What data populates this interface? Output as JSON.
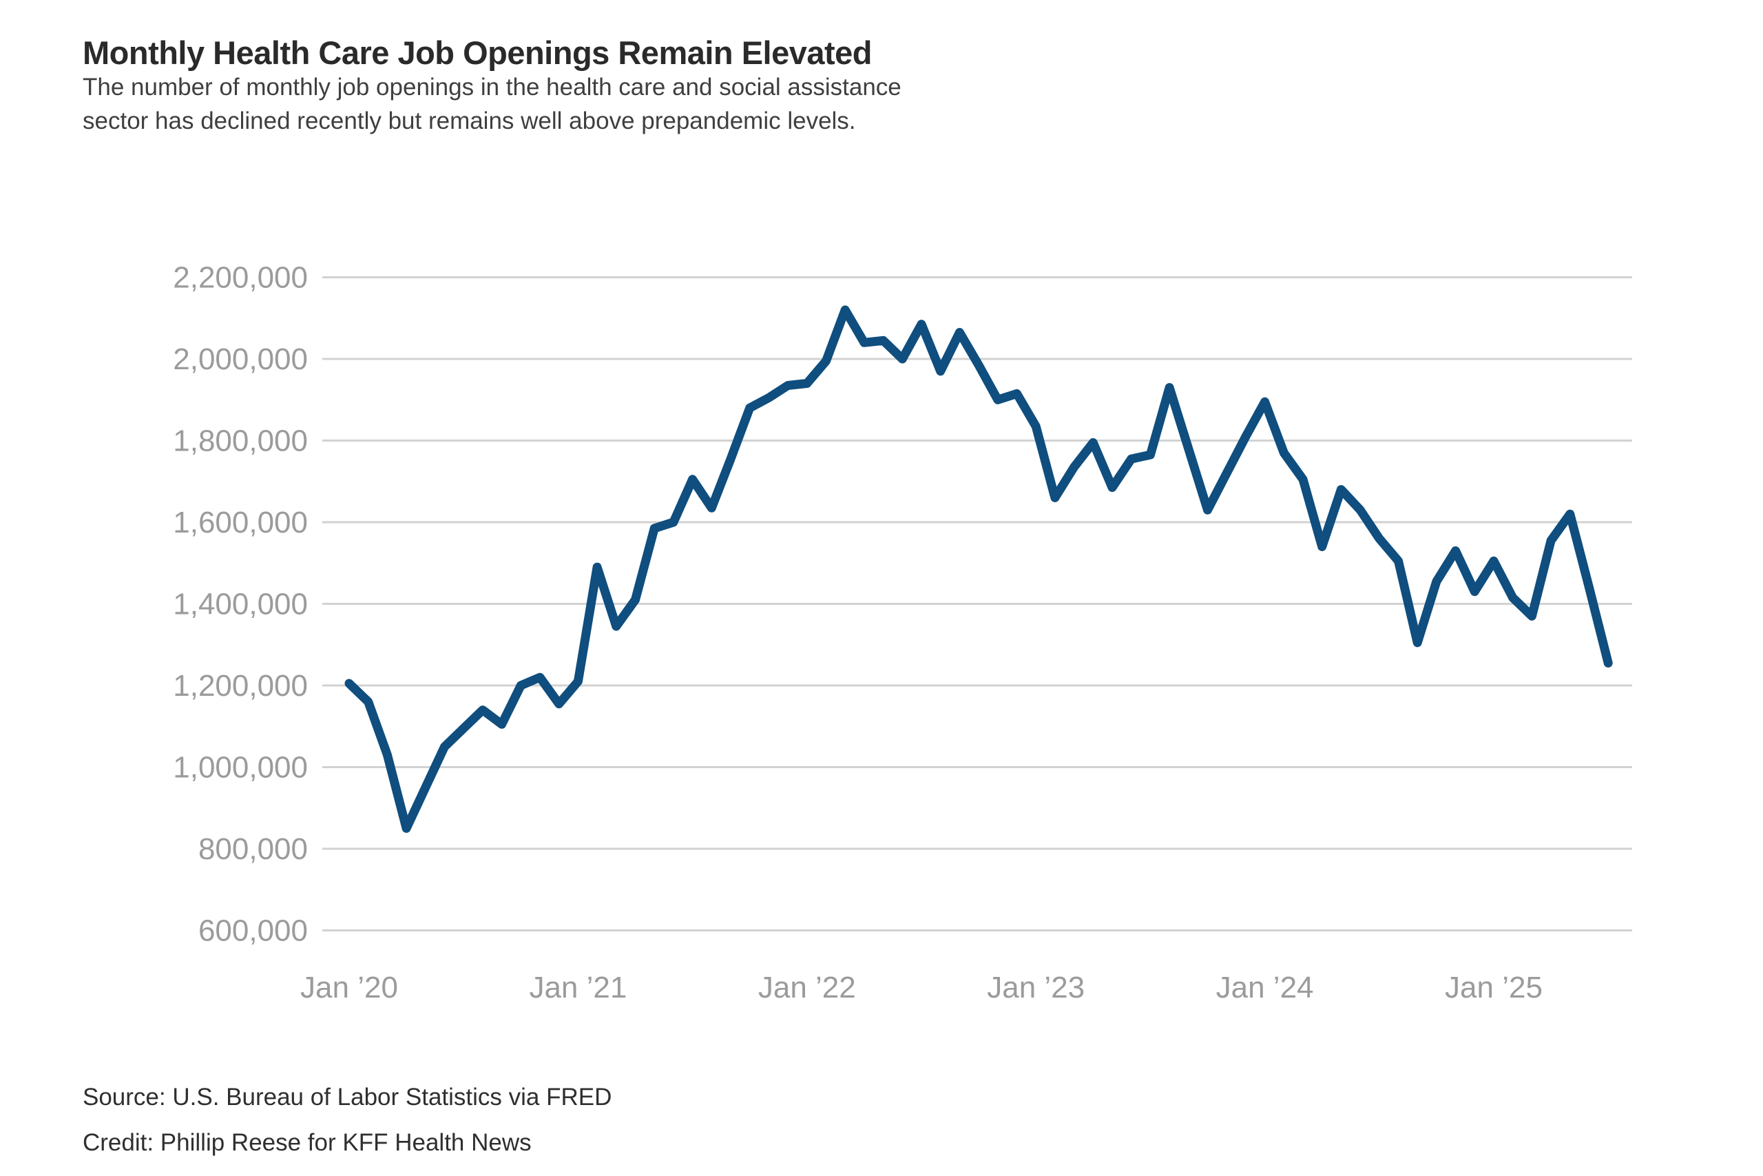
{
  "header": {
    "title": "Monthly Health Care Job Openings Remain Elevated",
    "subtitle_lines": [
      "The number of monthly job openings in the health care and social assistance",
      "sector has declined recently but remains well above prepandemic levels."
    ]
  },
  "footer": {
    "source": "Source: U.S. Bureau of Labor Statistics via FRED",
    "credit": "Credit: Phillip Reese for KFF Health News"
  },
  "colors": {
    "line": "#0F4E7E",
    "gridline": "#d2d2d2",
    "tick_text": "#9b9b9b",
    "background": "#ffffff"
  },
  "chart_data": {
    "type": "line",
    "title": "Monthly Health Care Job Openings Remain Elevated",
    "xlabel": "",
    "ylabel": "",
    "grid": true,
    "legend": false,
    "ylim": [
      600000,
      2200000
    ],
    "y_ticks": [
      {
        "value": 2200000,
        "label": "2,200,000"
      },
      {
        "value": 2000000,
        "label": "2,000,000"
      },
      {
        "value": 1800000,
        "label": "1,800,000"
      },
      {
        "value": 1600000,
        "label": "1,600,000"
      },
      {
        "value": 1400000,
        "label": "1,400,000"
      },
      {
        "value": 1200000,
        "label": "1,200,000"
      },
      {
        "value": 1000000,
        "label": "1,000,000"
      },
      {
        "value": 800000,
        "label": "800,000"
      },
      {
        "value": 600000,
        "label": "600,000"
      }
    ],
    "x_ticks": [
      {
        "month_index": 0,
        "label": "Jan ’20"
      },
      {
        "month_index": 12,
        "label": "Jan ’21"
      },
      {
        "month_index": 24,
        "label": "Jan ’22"
      },
      {
        "month_index": 36,
        "label": "Jan ’23"
      },
      {
        "month_index": 48,
        "label": "Jan ’24"
      },
      {
        "month_index": 60,
        "label": "Jan ’25"
      }
    ],
    "series_name": "Health care and social assistance job openings",
    "months": [
      "2020-01",
      "2020-02",
      "2020-03",
      "2020-04",
      "2020-05",
      "2020-06",
      "2020-07",
      "2020-08",
      "2020-09",
      "2020-10",
      "2020-11",
      "2020-12",
      "2021-01",
      "2021-02",
      "2021-03",
      "2021-04",
      "2021-05",
      "2021-06",
      "2021-07",
      "2021-08",
      "2021-09",
      "2021-10",
      "2021-11",
      "2021-12",
      "2022-01",
      "2022-02",
      "2022-03",
      "2022-04",
      "2022-05",
      "2022-06",
      "2022-07",
      "2022-08",
      "2022-09",
      "2022-10",
      "2022-11",
      "2022-12",
      "2023-01",
      "2023-02",
      "2023-03",
      "2023-04",
      "2023-05",
      "2023-06",
      "2023-07",
      "2023-08",
      "2023-09",
      "2023-10",
      "2023-11",
      "2023-12",
      "2024-01",
      "2024-02",
      "2024-03",
      "2024-04",
      "2024-05",
      "2024-06",
      "2024-07",
      "2024-08",
      "2024-09",
      "2024-10",
      "2024-11",
      "2024-12",
      "2025-01",
      "2025-02",
      "2025-03",
      "2025-04",
      "2025-05",
      "2025-06",
      "2025-07"
    ],
    "values": [
      1205000,
      1160000,
      1030000,
      850000,
      950000,
      1050000,
      1095000,
      1140000,
      1105000,
      1200000,
      1220000,
      1155000,
      1210000,
      1490000,
      1345000,
      1410000,
      1585000,
      1600000,
      1705000,
      1635000,
      1755000,
      1880000,
      1905000,
      1935000,
      1940000,
      1995000,
      2120000,
      2040000,
      2045000,
      2000000,
      2085000,
      1970000,
      2065000,
      1985000,
      1900000,
      1915000,
      1835000,
      1660000,
      1735000,
      1795000,
      1685000,
      1755000,
      1765000,
      1930000,
      1780000,
      1630000,
      1720000,
      1810000,
      1895000,
      1770000,
      1705000,
      1540000,
      1680000,
      1630000,
      1560000,
      1505000,
      1305000,
      1455000,
      1530000,
      1430000,
      1505000,
      1415000,
      1370000,
      1555000,
      1620000,
      1440000,
      1255000
    ]
  }
}
